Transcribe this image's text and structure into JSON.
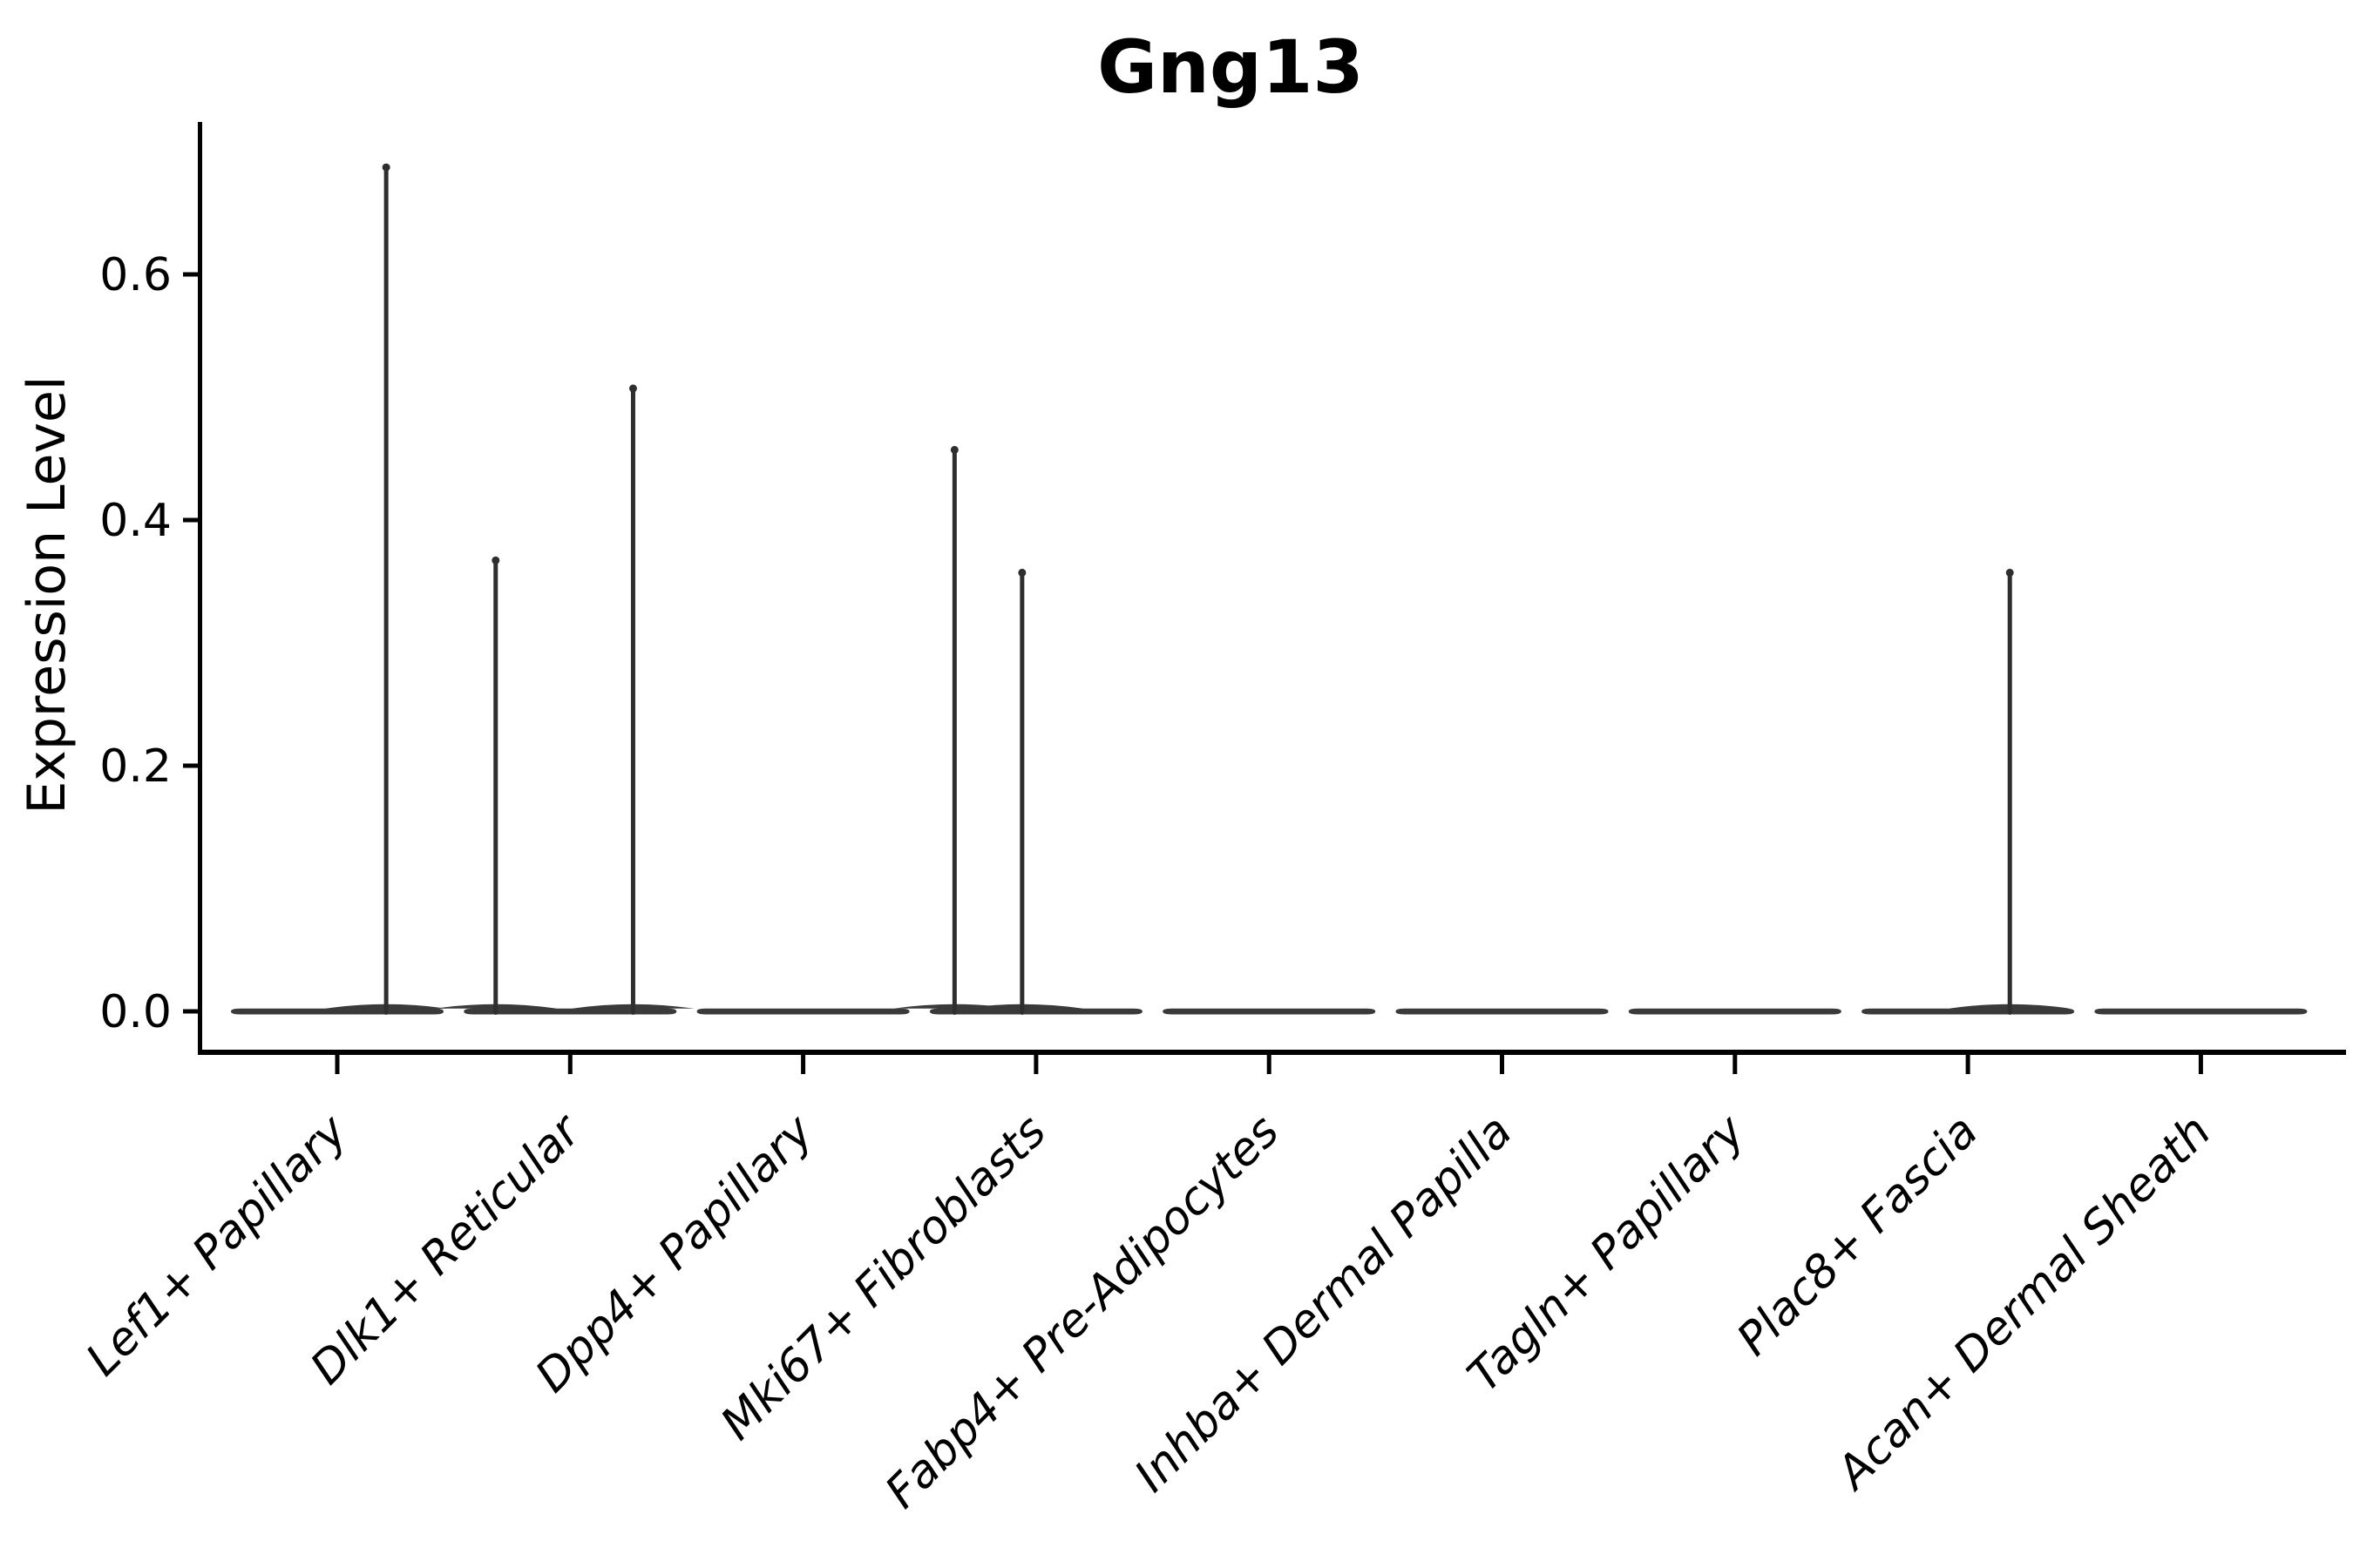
{
  "chart_data": {
    "type": "violin",
    "title": "Gng13",
    "xlabel": "",
    "ylabel": "Expression Level",
    "yticks": [
      0.0,
      0.2,
      0.4,
      0.6
    ],
    "ytick_labels": [
      "0.0",
      "0.2",
      "0.4",
      "0.6"
    ],
    "ylim": [
      -0.033,
      0.715
    ],
    "legend": "none",
    "grid": false,
    "categories": [
      "Lef1+ Papillary",
      "Dlk1+ Reticular",
      "Dpp4+ Papillary",
      "Mki67+ Fibroblasts",
      "Fabp4+ Pre-Adipocytes",
      "Inhba+ Dermal Papilla",
      "Tagln+ Papillary",
      "Plac8+ Fascia",
      "Acan+ Dermal Sheath"
    ],
    "violins": [
      {
        "category": "Lef1+ Papillary",
        "body": "flat-at-zero",
        "spikes": [
          {
            "offset": 0.21,
            "value": 0.69
          }
        ]
      },
      {
        "category": "Dlk1+ Reticular",
        "body": "flat-at-zero",
        "spikes": [
          {
            "offset": -0.32,
            "value": 0.37
          },
          {
            "offset": 0.27,
            "value": 0.51
          }
        ]
      },
      {
        "category": "Dpp4+ Papillary",
        "body": "flat-at-zero",
        "spikes": []
      },
      {
        "category": "Mki67+ Fibroblasts",
        "body": "flat-at-zero",
        "spikes": [
          {
            "offset": -0.35,
            "value": 0.46
          },
          {
            "offset": -0.06,
            "value": 0.36
          }
        ]
      },
      {
        "category": "Fabp4+ Pre-Adipocytes",
        "body": "flat-at-zero",
        "spikes": []
      },
      {
        "category": "Inhba+ Dermal Papilla",
        "body": "flat-at-zero",
        "spikes": []
      },
      {
        "category": "Tagln+ Papillary",
        "body": "flat-at-zero",
        "spikes": []
      },
      {
        "category": "Plac8+ Fascia",
        "body": "flat-at-zero",
        "spikes": [
          {
            "offset": 0.18,
            "value": 0.36
          }
        ]
      },
      {
        "category": "Acan+ Dermal Sheath",
        "body": "flat-at-zero",
        "spikes": []
      }
    ],
    "colors": {
      "violin_body": "#3a3a3a",
      "spike": "#2e2e2e",
      "axis": "#000000",
      "text": "#000000",
      "background": "#ffffff"
    }
  }
}
